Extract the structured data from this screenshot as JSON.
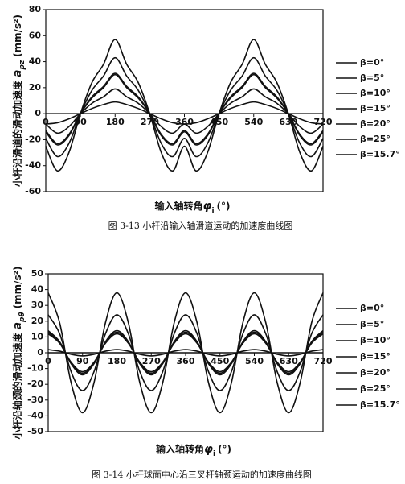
{
  "chart_data": [
    {
      "type": "line",
      "y_label": "小杆沿滑道的滑动加速度",
      "y_symbol": "a",
      "y_sub": "pz",
      "y_unit": "(mm/s²)",
      "x_label": "输入轴转角",
      "x_symbol": "φ",
      "x_sub": "i",
      "x_unit": "(°)",
      "caption": "图 3-13  小杆沿输入轴滑道运动的加速度曲线图",
      "xlim": [
        0,
        720
      ],
      "xticks": [
        0,
        90,
        180,
        270,
        360,
        450,
        540,
        630,
        720
      ],
      "ylim": [
        -60,
        80
      ],
      "yticks": [
        -60,
        -40,
        -20,
        0,
        20,
        40,
        60,
        80
      ],
      "x": [
        0,
        30,
        60,
        90,
        120,
        150,
        180,
        210,
        240,
        270,
        300,
        330,
        360,
        390,
        420,
        450,
        480,
        510,
        540,
        570,
        600,
        630,
        660,
        690,
        720
      ],
      "series": [
        {
          "name": "β=0°",
          "color": "#111111",
          "values": [
            0,
            0,
            0,
            0,
            0,
            0,
            0,
            0,
            0,
            0,
            0,
            0,
            0,
            0,
            0,
            0,
            0,
            0,
            0,
            0,
            0,
            0,
            0,
            0,
            0
          ]
        },
        {
          "name": "β=5°",
          "color": "#111111",
          "values": [
            -8,
            -7,
            -4,
            0,
            4,
            7,
            9,
            7,
            4,
            0,
            -4,
            -7,
            -8,
            -7,
            -4,
            0,
            4,
            7,
            9,
            7,
            4,
            0,
            -4,
            -7,
            -8
          ]
        },
        {
          "name": "β=10°",
          "color": "#111111",
          "values": [
            -8,
            -15,
            -10,
            0,
            8,
            13,
            19,
            13,
            8,
            0,
            -10,
            -15,
            -8,
            -15,
            -10,
            0,
            8,
            13,
            19,
            13,
            8,
            0,
            -10,
            -15,
            -8
          ]
        },
        {
          "name": "β=15°",
          "color": "#111111",
          "values": [
            -13,
            -23,
            -16,
            0,
            12,
            20,
            30,
            20,
            12,
            0,
            -16,
            -23,
            -13,
            -23,
            -16,
            0,
            12,
            20,
            30,
            20,
            12,
            0,
            -16,
            -23,
            -13
          ]
        },
        {
          "name": "β=20°",
          "color": "#111111",
          "values": [
            -19,
            -33,
            -23,
            0,
            18,
            29,
            43,
            29,
            18,
            0,
            -23,
            -33,
            -19,
            -33,
            -23,
            0,
            18,
            29,
            43,
            29,
            18,
            0,
            -23,
            -33,
            -19
          ]
        },
        {
          "name": "β=25°",
          "color": "#111111",
          "values": [
            -25,
            -44,
            -30,
            0,
            24,
            38,
            57,
            38,
            24,
            0,
            -30,
            -44,
            -25,
            -44,
            -30,
            0,
            24,
            38,
            57,
            38,
            24,
            0,
            -30,
            -44,
            -25
          ]
        },
        {
          "name": "β=15.7°",
          "color": "#111111",
          "values": [
            -14,
            -24,
            -17,
            0,
            13,
            21,
            31,
            21,
            13,
            0,
            -17,
            -24,
            -14,
            -24,
            -17,
            0,
            13,
            21,
            31,
            21,
            13,
            0,
            -17,
            -24,
            -14
          ]
        }
      ]
    },
    {
      "type": "line",
      "y_label": "小杆沿轴颈的滑动加速度",
      "y_symbol": "a",
      "y_sub": "pθ",
      "y_unit": "(mm/s²)",
      "x_label": "输入轴转角",
      "x_symbol": "φ",
      "x_sub": "i",
      "x_unit": "(°)",
      "caption": "图 3-14  小杆球面中心沿三叉杆轴颈运动的加速度曲线图",
      "xlim": [
        0,
        720
      ],
      "xticks": [
        0,
        90,
        180,
        270,
        360,
        450,
        540,
        630,
        720
      ],
      "ylim": [
        -50,
        50
      ],
      "yticks": [
        -50,
        -40,
        -30,
        -20,
        -10,
        0,
        10,
        20,
        30,
        40,
        50
      ],
      "x": [
        0,
        30,
        60,
        90,
        120,
        150,
        180,
        210,
        240,
        270,
        300,
        330,
        360,
        390,
        420,
        450,
        480,
        510,
        540,
        570,
        600,
        630,
        660,
        690,
        720
      ],
      "series": [
        {
          "name": "β=0°",
          "color": "#111111",
          "values": [
            0,
            0,
            0,
            0,
            0,
            0,
            0,
            0,
            0,
            0,
            0,
            0,
            0,
            0,
            0,
            0,
            0,
            0,
            0,
            0,
            0,
            0,
            0,
            0,
            0
          ]
        },
        {
          "name": "β=5°",
          "color": "#111111",
          "values": [
            2,
            1,
            -1,
            -2,
            -1,
            1,
            2,
            1,
            -1,
            -2,
            -1,
            1,
            2,
            1,
            -1,
            -2,
            -1,
            1,
            2,
            1,
            -1,
            -2,
            -1,
            1,
            2
          ]
        },
        {
          "name": "β=10°",
          "color": "#111111",
          "values": [
            12,
            6,
            -6,
            -12,
            -6,
            6,
            12,
            6,
            -6,
            -12,
            -6,
            6,
            12,
            6,
            -6,
            -12,
            -6,
            6,
            12,
            6,
            -6,
            -12,
            -6,
            6,
            12
          ]
        },
        {
          "name": "β=15°",
          "color": "#111111",
          "values": [
            14,
            7,
            -7,
            -14,
            -7,
            7,
            14,
            7,
            -7,
            -14,
            -7,
            7,
            14,
            7,
            -7,
            -14,
            -7,
            7,
            14,
            7,
            -7,
            -14,
            -7,
            7,
            14
          ]
        },
        {
          "name": "β=20°",
          "color": "#111111",
          "values": [
            24,
            12,
            -12,
            -24,
            -12,
            12,
            24,
            12,
            -12,
            -24,
            -12,
            12,
            24,
            12,
            -12,
            -24,
            -12,
            12,
            24,
            12,
            -12,
            -24,
            -12,
            12,
            24
          ]
        },
        {
          "name": "β=25°",
          "color": "#111111",
          "values": [
            38,
            19,
            -19,
            -38,
            -19,
            19,
            38,
            19,
            -19,
            -38,
            -19,
            19,
            38,
            19,
            -19,
            -38,
            -19,
            19,
            38,
            19,
            -19,
            -38,
            -19,
            19,
            38
          ]
        },
        {
          "name": "β=15.7°",
          "color": "#111111",
          "values": [
            13,
            6.5,
            -6.5,
            -13,
            -6.5,
            6.5,
            13,
            6.5,
            -6.5,
            -13,
            -6.5,
            6.5,
            13,
            6.5,
            -6.5,
            -13,
            -6.5,
            6.5,
            13,
            6.5,
            -6.5,
            -13,
            -6.5,
            6.5,
            13
          ]
        }
      ]
    }
  ]
}
